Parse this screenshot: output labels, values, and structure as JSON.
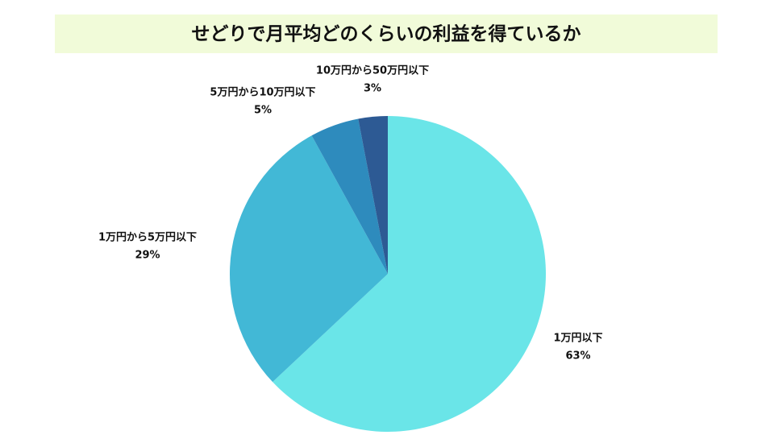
{
  "chart_data": {
    "type": "pie",
    "title": "せどりで月平均どのくらいの利益を得ているか",
    "categories": [
      "1万円以下",
      "1万円から5万円以下",
      "5万円から10万円以下",
      "10万円から50万円以下"
    ],
    "values": [
      63,
      29,
      5,
      3
    ],
    "value_labels": [
      "63%",
      "29%",
      "5%",
      "3%"
    ],
    "colors": [
      "#6ae5e8",
      "#42b8d6",
      "#2e8bbd",
      "#2d5a94"
    ]
  }
}
